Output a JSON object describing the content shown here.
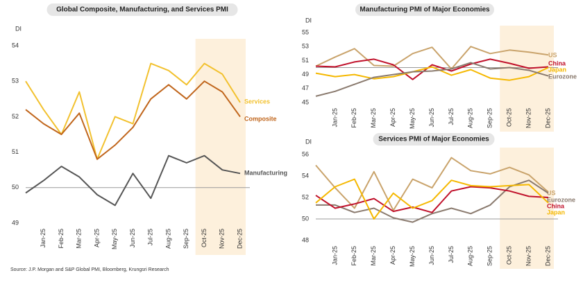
{
  "chart_data": [
    {
      "type": "line",
      "title": "Global Composite, Manufacturing, and Services PMI",
      "ylabel": "DI",
      "categories": [
        null,
        "Jan-25",
        "Feb-25",
        "Mar-25",
        "Apr-25",
        "May-25",
        "Jun-25",
        "Jul-25",
        "Aug-25",
        "Sep-25",
        "Oct-25",
        "Nov-25",
        "Dec-25"
      ],
      "ylim": [
        49,
        54
      ],
      "yticks": [
        49,
        50,
        51,
        52,
        53,
        54
      ],
      "reference_line": 50,
      "series": [
        {
          "name": "Services",
          "color": "#f2c12e",
          "values": [
            53.0,
            52.2,
            51.5,
            52.7,
            50.8,
            52.0,
            51.8,
            53.5,
            53.3,
            52.9,
            53.5,
            53.2,
            52.4
          ]
        },
        {
          "name": "Composite",
          "color": "#c0651b",
          "values": [
            52.2,
            51.8,
            51.5,
            52.1,
            50.8,
            51.2,
            51.7,
            52.5,
            52.9,
            52.5,
            53.0,
            52.7,
            52.0
          ]
        },
        {
          "name": "Manufacturing",
          "color": "#555555",
          "values": [
            49.85,
            50.2,
            50.6,
            50.3,
            49.8,
            49.5,
            50.4,
            49.7,
            50.9,
            50.7,
            50.9,
            50.5,
            50.4
          ]
        }
      ]
    },
    {
      "type": "line",
      "title": "Manufacturing PMI of Major Economies",
      "ylabel": "DI",
      "categories": [
        null,
        "Jan-25",
        "Feb-25",
        "Mar-25",
        "Apr-25",
        "May-25",
        "Jun-25",
        "Jul-25",
        "Aug-25",
        "Sep-25",
        "Oct-25",
        "Nov-25",
        "Dec-25"
      ],
      "ylim": [
        45,
        55
      ],
      "yticks": [
        45,
        47,
        49,
        51,
        53,
        55
      ],
      "reference_line": 50,
      "series": [
        {
          "name": "US",
          "color": "#c9a36b",
          "values": [
            50.2,
            51.5,
            52.7,
            50.3,
            50.2,
            52.0,
            52.9,
            49.8,
            53.0,
            52.0,
            52.5,
            52.2,
            51.8
          ]
        },
        {
          "name": "China",
          "color": "#c0102a",
          "values": [
            50.2,
            50.1,
            50.8,
            51.2,
            50.4,
            48.3,
            50.4,
            49.5,
            50.5,
            51.2,
            50.6,
            49.9,
            50.1
          ]
        },
        {
          "name": "Japan",
          "color": "#f5b800",
          "values": [
            49.2,
            48.7,
            49.0,
            48.4,
            48.7,
            49.4,
            50.1,
            48.9,
            49.7,
            48.5,
            48.2,
            48.7,
            50.0
          ]
        },
        {
          "name": "Eurozone",
          "color": "#8a7a6e",
          "values": [
            45.9,
            46.6,
            47.6,
            48.6,
            49.0,
            49.4,
            49.5,
            49.8,
            50.7,
            49.8,
            50.0,
            49.6,
            48.8
          ]
        }
      ]
    },
    {
      "type": "line",
      "title": "Services PMI of Major Economies",
      "ylabel": "DI",
      "categories": [
        null,
        "Jan-25",
        "Feb-25",
        "Mar-25",
        "Apr-25",
        "May-25",
        "Jun-25",
        "Jul-25",
        "Aug-25",
        "Sep-25",
        "Oct-25",
        "Nov-25",
        "Dec-25"
      ],
      "ylim": [
        48,
        56
      ],
      "yticks": [
        48,
        50,
        52,
        54,
        56
      ],
      "reference_line": 50,
      "series": [
        {
          "name": "US",
          "color": "#c9a36b",
          "values": [
            55.0,
            52.9,
            51.0,
            54.4,
            50.8,
            53.7,
            52.9,
            55.7,
            54.5,
            54.2,
            54.8,
            54.1,
            52.5
          ]
        },
        {
          "name": "Eurozone",
          "color": "#8a7a6e",
          "values": [
            51.3,
            51.3,
            50.6,
            51.0,
            50.1,
            49.7,
            50.5,
            51.0,
            50.5,
            51.3,
            53.0,
            53.6,
            52.4
          ]
        },
        {
          "name": "China",
          "color": "#c0102a",
          "values": [
            52.2,
            51.0,
            51.4,
            51.9,
            50.7,
            51.1,
            50.6,
            52.6,
            53.0,
            52.9,
            52.6,
            52.1,
            52.0
          ]
        },
        {
          "name": "Japan",
          "color": "#f5b800",
          "values": [
            51.5,
            53.0,
            53.7,
            50.0,
            52.4,
            51.0,
            51.7,
            53.6,
            53.1,
            53.0,
            53.1,
            53.2,
            51.5
          ]
        }
      ]
    }
  ],
  "source": "Source: J.P. Morgan and S&P Global PMI, Bloomberg, Krungsri Research"
}
